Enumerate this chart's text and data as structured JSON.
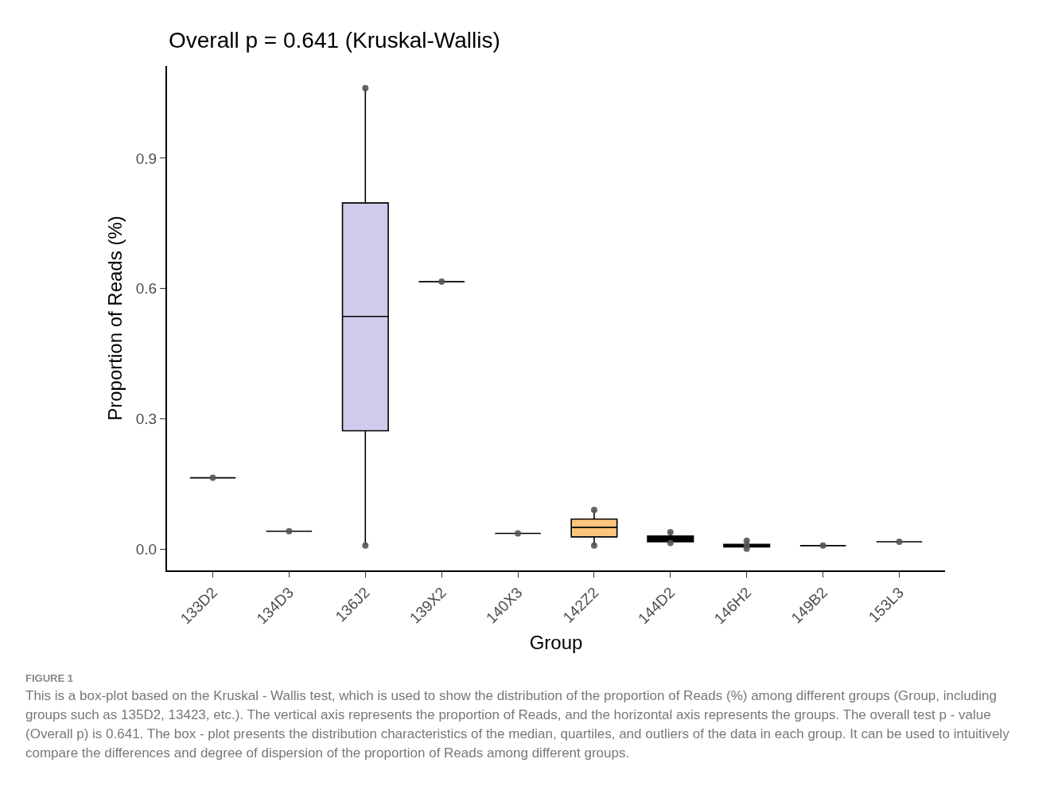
{
  "chart_data": {
    "type": "box",
    "title": "Overall p = 0.641 (Kruskal-Wallis)",
    "xlabel": "Group",
    "ylabel": "Proportion of Reads (%)",
    "categories": [
      "133D2",
      "134D3",
      "136J2",
      "139X2",
      "140X3",
      "142Z2",
      "144D2",
      "146H2",
      "149B2",
      "153L3"
    ],
    "boxes": [
      {
        "low": 0.165,
        "q1": 0.165,
        "median": 0.165,
        "q3": 0.165,
        "high": 0.165
      },
      {
        "low": 0.042,
        "q1": 0.042,
        "median": 0.042,
        "q3": 0.042,
        "high": 0.042
      },
      {
        "low": 0.009,
        "q1": 0.273,
        "median": 0.536,
        "q3": 0.797,
        "high": 1.061
      },
      {
        "low": 0.616,
        "q1": 0.616,
        "median": 0.616,
        "q3": 0.616,
        "high": 0.616
      },
      {
        "low": 0.037,
        "q1": 0.037,
        "median": 0.037,
        "q3": 0.037,
        "high": 0.037
      },
      {
        "low": 0.009,
        "q1": 0.029,
        "median": 0.051,
        "q3": 0.07,
        "high": 0.091
      },
      {
        "low": 0.015,
        "q1": 0.018,
        "median": 0.026,
        "q3": 0.031,
        "high": 0.04
      },
      {
        "low": 0.002,
        "q1": 0.006,
        "median": 0.009,
        "q3": 0.012,
        "high": 0.02
      },
      {
        "low": 0.009,
        "q1": 0.009,
        "median": 0.009,
        "q3": 0.009,
        "high": 0.009
      },
      {
        "low": 0.018,
        "q1": 0.018,
        "median": 0.018,
        "q3": 0.018,
        "high": 0.018
      }
    ],
    "colors": [
      "#000000",
      "#000000",
      "#d0cbea",
      "#000000",
      "#000000",
      "#fdc47c",
      "#000000",
      "#000000",
      "#000000",
      "#000000"
    ],
    "series": [
      {
        "type": "scatter",
        "color": "#555555",
        "x": [
          "133D2",
          "134D3",
          "136J2",
          "136J2",
          "139X2",
          "140X3",
          "142Z2",
          "142Z2",
          "144D2",
          "144D2",
          "146H2",
          "146H2",
          "146H2",
          "149B2",
          "153L3"
        ],
        "values": [
          0.165,
          0.042,
          1.061,
          0.009,
          0.616,
          0.037,
          0.091,
          0.009,
          0.04,
          0.015,
          0.02,
          0.002,
          0.009,
          0.009,
          0.018
        ]
      }
    ],
    "marker": "circle",
    "ylim": [
      -0.048,
      1.112
    ],
    "yticks": [
      {
        "value": 0,
        "label": "0.0"
      },
      0.3,
      0.6,
      0.9
    ],
    "grid": false,
    "annotations": [
      "FIGURE 1",
      "This is a box-plot based on the Kruskal - Wallis test, which is used to show the distribution of the proportion of Reads (%) among different groups (Group, including groups such as 135D2, 13423, etc.). The vertical axis represents the proportion of Reads, and the horizontal axis represents the groups. The overall test p - value (Overall p) is 0.641. The box - plot presents the distribution characteristics of the median, quartiles, and outliers of the data in each group. It can be used to intuitively compare the differences and degree of dispersion of the proportion of Reads among different groups."
    ]
  }
}
